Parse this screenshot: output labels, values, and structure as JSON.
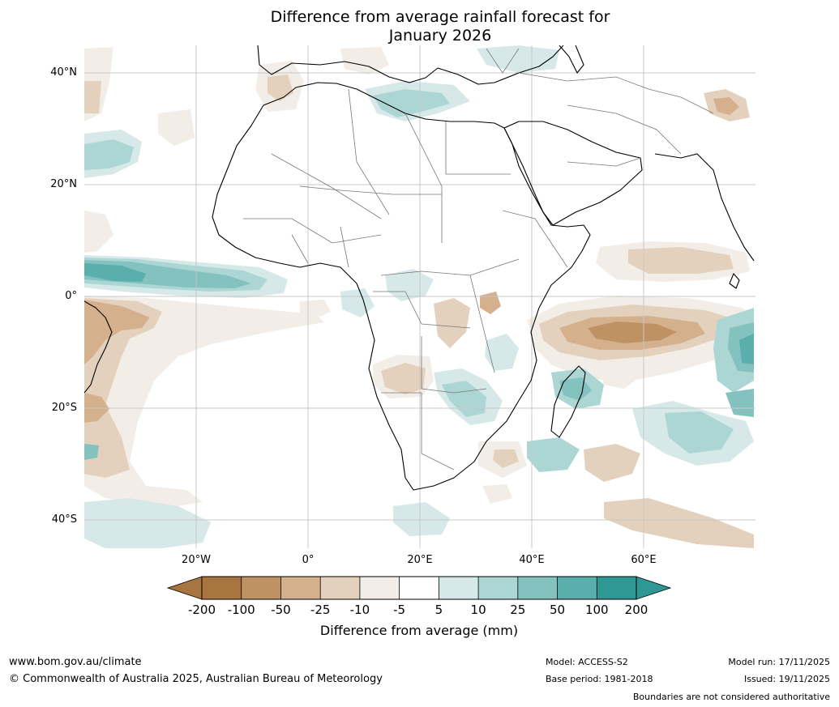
{
  "title": {
    "line1": "Difference from average rainfall forecast for",
    "line2": "January 2026"
  },
  "map": {
    "region": "Africa and surrounding ocean",
    "lat_labels": [
      "40°N",
      "20°N",
      "0°",
      "20°S",
      "40°S"
    ],
    "lon_labels": [
      "20°W",
      "0°",
      "20°E",
      "40°E",
      "60°E"
    ]
  },
  "legend": {
    "title": "Difference from average (mm)",
    "ticks": [
      "-200",
      "-100",
      "-50",
      "-25",
      "-10",
      "-5",
      "5",
      "10",
      "25",
      "50",
      "100",
      "200"
    ],
    "colors": [
      "#a87440",
      "#bf9263",
      "#d4b08c",
      "#e4d1bd",
      "#f2ede6",
      "#ffffff",
      "#d6e9e8",
      "#acd6d4",
      "#84c2c0",
      "#5aaeab",
      "#2f9894"
    ],
    "extend_low_color": "#a87440",
    "extend_high_color": "#2f9894"
  },
  "footer": {
    "website": "www.bom.gov.au/climate",
    "copyright": "© Commonwealth of Australia 2025, Australian Bureau of Meteorology",
    "model": "Model: ACCESS-S2",
    "base_period": "Base period: 1981-2018",
    "model_run": "Model run: 17/11/2025",
    "issued": "Issued: 19/11/2025",
    "disclaimer": "Boundaries are not considered authoritative"
  }
}
